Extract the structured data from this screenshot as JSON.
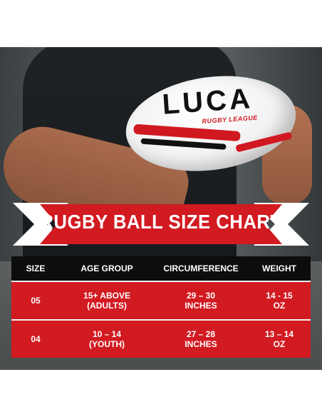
{
  "ball": {
    "brand": "LUCA",
    "sub_brand": "RUGBY LEAGUE"
  },
  "banner": {
    "title": "RUGBY BALL SIZE CHART"
  },
  "table": {
    "headers": [
      "SIZE",
      "AGE GROUP",
      "CIRCUMFERENCE",
      "WEIGHT"
    ],
    "rows": [
      {
        "size": "05",
        "age_line1": "15+ ABOVE",
        "age_line2": "(ADULTS)",
        "circ_line1": "29 – 30",
        "circ_line2": "INCHES",
        "weight_line1": "14 - 15",
        "weight_line2": "OZ"
      },
      {
        "size": "04",
        "age_line1": "10 – 14",
        "age_line2": "(YOUTH)",
        "circ_line1": "27 – 28",
        "circ_line2": "INCHES",
        "weight_line1": "13 – 14",
        "weight_line2": "OZ"
      }
    ]
  },
  "colors": {
    "accent_red": "#d21a21",
    "header_black": "#0d0d0d",
    "banner_white": "#ffffff"
  }
}
